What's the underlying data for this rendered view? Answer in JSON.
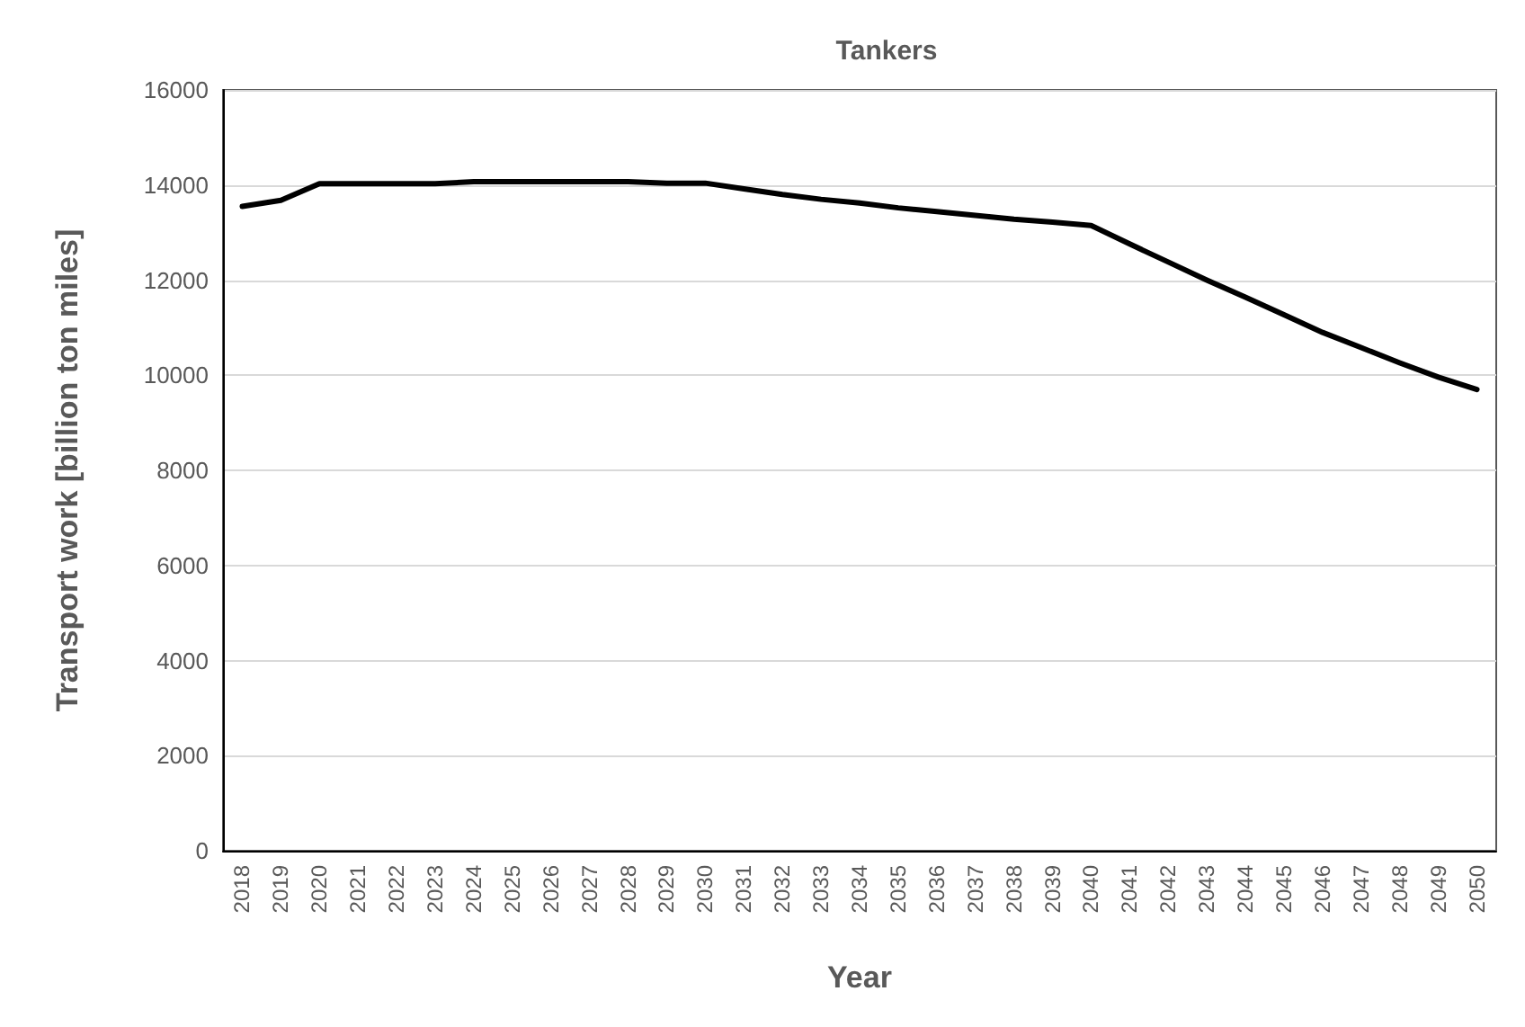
{
  "chart_data": {
    "type": "line",
    "title": "Tankers",
    "xlabel": "Year",
    "ylabel": "Transport work [billion ton miles]",
    "categories": [
      "2018",
      "2019",
      "2020",
      "2021",
      "2022",
      "2023",
      "2024",
      "2025",
      "2026",
      "2027",
      "2028",
      "2029",
      "2030",
      "2031",
      "2032",
      "2033",
      "2034",
      "2035",
      "2036",
      "2037",
      "2038",
      "2039",
      "2040",
      "2041",
      "2042",
      "2043",
      "2044",
      "2045",
      "2046",
      "2047",
      "2048",
      "2049",
      "2050"
    ],
    "series": [
      {
        "color": "#000000",
        "values": [
          13550,
          13680,
          14030,
          14030,
          14030,
          14030,
          14070,
          14070,
          14070,
          14070,
          14070,
          14040,
          14040,
          13920,
          13800,
          13700,
          13620,
          13520,
          13440,
          13360,
          13280,
          13220,
          13150,
          12760,
          12380,
          12000,
          11640,
          11270,
          10900,
          10580,
          10260,
          9960,
          9700
        ]
      }
    ],
    "ylim": [
      0,
      16000
    ],
    "yticks": [
      0,
      2000,
      4000,
      6000,
      8000,
      10000,
      12000,
      14000,
      16000
    ],
    "grid": "y",
    "marker": "none",
    "line_style": "solid"
  }
}
